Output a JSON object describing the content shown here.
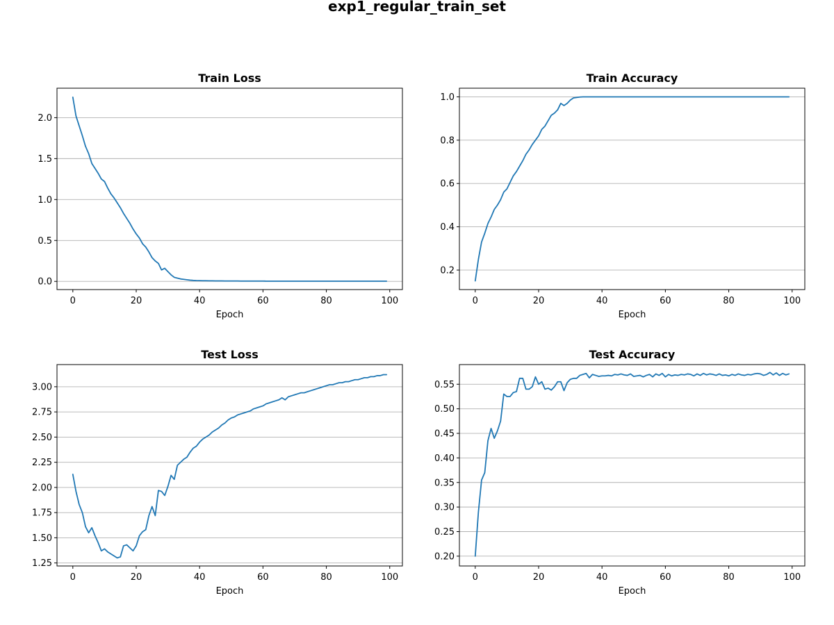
{
  "figure": {
    "suptitle": "exp1_regular_train_set"
  },
  "colors": {
    "line": "#1f77b4",
    "grid": "#b0b0b0",
    "axes": "#000000"
  },
  "chart_data": [
    {
      "type": "line",
      "title": "Train Loss",
      "xlabel": "Epoch",
      "ylabel": "",
      "grid": "y-only",
      "xlim": [
        -5,
        104
      ],
      "ylim": [
        -0.1,
        2.36
      ],
      "xticks": [
        0,
        20,
        40,
        60,
        80,
        100
      ],
      "xtick_labels": [
        "0",
        "20",
        "40",
        "60",
        "80",
        "100"
      ],
      "yticks": [
        0.0,
        0.5,
        1.0,
        1.5,
        2.0
      ],
      "ytick_labels": [
        "0.0",
        "0.5",
        "1.0",
        "1.5",
        "2.0"
      ],
      "x_start": 0,
      "y": [
        2.25,
        2.02,
        1.9,
        1.78,
        1.65,
        1.56,
        1.44,
        1.38,
        1.32,
        1.25,
        1.22,
        1.14,
        1.07,
        1.02,
        0.96,
        0.9,
        0.83,
        0.77,
        0.71,
        0.64,
        0.58,
        0.53,
        0.46,
        0.42,
        0.36,
        0.29,
        0.25,
        0.22,
        0.14,
        0.16,
        0.12,
        0.08,
        0.05,
        0.04,
        0.03,
        0.025,
        0.02,
        0.015,
        0.012,
        0.01,
        0.009,
        0.008,
        0.008,
        0.007,
        0.007,
        0.006,
        0.006,
        0.006,
        0.005,
        0.005,
        0.005,
        0.005,
        0.005,
        0.004,
        0.004,
        0.004,
        0.004,
        0.004,
        0.004,
        0.004,
        0.004,
        0.003,
        0.003,
        0.003,
        0.003,
        0.003,
        0.003,
        0.003,
        0.003,
        0.003,
        0.003,
        0.003,
        0.003,
        0.003,
        0.003,
        0.003,
        0.003,
        0.003,
        0.003,
        0.003,
        0.003,
        0.003,
        0.003,
        0.003,
        0.003,
        0.003,
        0.003,
        0.003,
        0.003,
        0.003,
        0.003,
        0.003,
        0.003,
        0.003,
        0.003,
        0.003,
        0.003,
        0.003,
        0.003,
        0.003
      ]
    },
    {
      "type": "line",
      "title": "Train Accuracy",
      "xlabel": "Epoch",
      "ylabel": "",
      "grid": "y-only",
      "xlim": [
        -5,
        104
      ],
      "ylim": [
        0.11,
        1.04
      ],
      "xticks": [
        0,
        20,
        40,
        60,
        80,
        100
      ],
      "xtick_labels": [
        "0",
        "20",
        "40",
        "60",
        "80",
        "100"
      ],
      "yticks": [
        0.2,
        0.4,
        0.6,
        0.8,
        1.0
      ],
      "ytick_labels": [
        "0.2",
        "0.4",
        "0.6",
        "0.8",
        "1.0"
      ],
      "x_start": 0,
      "y": [
        0.15,
        0.25,
        0.33,
        0.37,
        0.415,
        0.445,
        0.48,
        0.5,
        0.525,
        0.56,
        0.575,
        0.605,
        0.635,
        0.655,
        0.68,
        0.705,
        0.735,
        0.755,
        0.78,
        0.8,
        0.82,
        0.85,
        0.865,
        0.89,
        0.915,
        0.925,
        0.94,
        0.97,
        0.96,
        0.97,
        0.985,
        0.995,
        0.997,
        0.999,
        1.0,
        1.0,
        1.0,
        1.0,
        1.0,
        1.0,
        1.0,
        1.0,
        1.0,
        1.0,
        1.0,
        1.0,
        1.0,
        1.0,
        1.0,
        1.0,
        1.0,
        1.0,
        1.0,
        1.0,
        1.0,
        1.0,
        1.0,
        1.0,
        1.0,
        1.0,
        1.0,
        1.0,
        1.0,
        1.0,
        1.0,
        1.0,
        1.0,
        1.0,
        1.0,
        1.0,
        1.0,
        1.0,
        1.0,
        1.0,
        1.0,
        1.0,
        1.0,
        1.0,
        1.0,
        1.0,
        1.0,
        1.0,
        1.0,
        1.0,
        1.0,
        1.0,
        1.0,
        1.0,
        1.0,
        1.0,
        1.0,
        1.0,
        1.0,
        1.0,
        1.0,
        1.0,
        1.0,
        1.0,
        1.0,
        1.0
      ]
    },
    {
      "type": "line",
      "title": "Test Loss",
      "xlabel": "Epoch",
      "ylabel": "",
      "grid": "y-only",
      "xlim": [
        -5,
        104
      ],
      "ylim": [
        1.22,
        3.22
      ],
      "xticks": [
        0,
        20,
        40,
        60,
        80,
        100
      ],
      "xtick_labels": [
        "0",
        "20",
        "40",
        "60",
        "80",
        "100"
      ],
      "yticks": [
        1.25,
        1.5,
        1.75,
        2.0,
        2.25,
        2.5,
        2.75,
        3.0
      ],
      "ytick_labels": [
        "1.25",
        "1.50",
        "1.75",
        "2.00",
        "2.25",
        "2.50",
        "2.75",
        "3.00"
      ],
      "x_start": 0,
      "y": [
        2.13,
        1.96,
        1.83,
        1.75,
        1.61,
        1.55,
        1.6,
        1.52,
        1.45,
        1.37,
        1.39,
        1.36,
        1.34,
        1.32,
        1.3,
        1.31,
        1.42,
        1.43,
        1.4,
        1.37,
        1.42,
        1.52,
        1.56,
        1.58,
        1.72,
        1.81,
        1.72,
        1.97,
        1.96,
        1.92,
        2.01,
        2.12,
        2.08,
        2.22,
        2.25,
        2.28,
        2.3,
        2.35,
        2.39,
        2.41,
        2.45,
        2.48,
        2.5,
        2.52,
        2.55,
        2.57,
        2.59,
        2.62,
        2.64,
        2.67,
        2.69,
        2.7,
        2.72,
        2.73,
        2.74,
        2.75,
        2.76,
        2.78,
        2.79,
        2.8,
        2.81,
        2.83,
        2.84,
        2.85,
        2.86,
        2.87,
        2.89,
        2.87,
        2.9,
        2.91,
        2.92,
        2.93,
        2.94,
        2.94,
        2.95,
        2.96,
        2.97,
        2.98,
        2.99,
        3.0,
        3.01,
        3.02,
        3.02,
        3.03,
        3.04,
        3.04,
        3.05,
        3.05,
        3.06,
        3.07,
        3.07,
        3.08,
        3.09,
        3.09,
        3.1,
        3.1,
        3.11,
        3.11,
        3.12,
        3.12
      ]
    },
    {
      "type": "line",
      "title": "Test Accuracy",
      "xlabel": "Epoch",
      "ylabel": "",
      "grid": "y-only",
      "xlim": [
        -5,
        104
      ],
      "ylim": [
        0.18,
        0.59
      ],
      "xticks": [
        0,
        20,
        40,
        60,
        80,
        100
      ],
      "xtick_labels": [
        "0",
        "20",
        "40",
        "60",
        "80",
        "100"
      ],
      "yticks": [
        0.2,
        0.25,
        0.3,
        0.35,
        0.4,
        0.45,
        0.5,
        0.55
      ],
      "ytick_labels": [
        "0.20",
        "0.25",
        "0.30",
        "0.35",
        "0.40",
        "0.45",
        "0.50",
        "0.55"
      ],
      "x_start": 0,
      "y": [
        0.2,
        0.29,
        0.355,
        0.37,
        0.435,
        0.46,
        0.44,
        0.455,
        0.475,
        0.53,
        0.525,
        0.525,
        0.533,
        0.535,
        0.562,
        0.562,
        0.54,
        0.54,
        0.545,
        0.565,
        0.55,
        0.555,
        0.54,
        0.542,
        0.538,
        0.545,
        0.555,
        0.555,
        0.537,
        0.553,
        0.56,
        0.562,
        0.562,
        0.568,
        0.57,
        0.572,
        0.563,
        0.57,
        0.568,
        0.566,
        0.567,
        0.567,
        0.568,
        0.567,
        0.57,
        0.569,
        0.571,
        0.569,
        0.568,
        0.571,
        0.566,
        0.567,
        0.568,
        0.565,
        0.568,
        0.57,
        0.565,
        0.571,
        0.568,
        0.572,
        0.565,
        0.57,
        0.567,
        0.569,
        0.568,
        0.57,
        0.569,
        0.571,
        0.57,
        0.567,
        0.571,
        0.568,
        0.572,
        0.569,
        0.571,
        0.57,
        0.568,
        0.571,
        0.568,
        0.569,
        0.567,
        0.57,
        0.568,
        0.571,
        0.569,
        0.568,
        0.57,
        0.569,
        0.571,
        0.572,
        0.571,
        0.568,
        0.57,
        0.574,
        0.569,
        0.573,
        0.568,
        0.572,
        0.569,
        0.571
      ]
    }
  ]
}
